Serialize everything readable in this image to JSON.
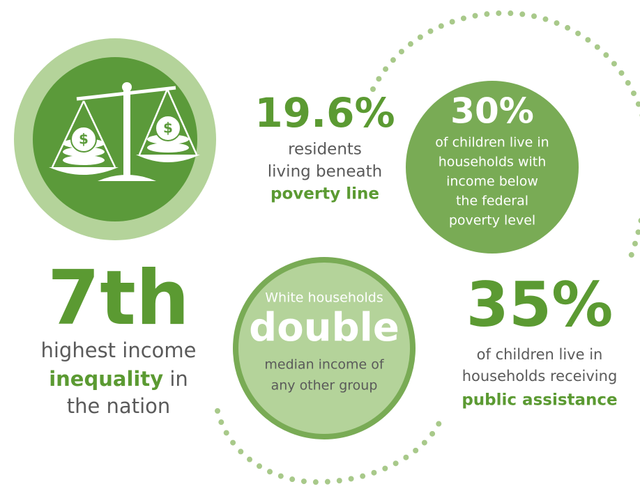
{
  "poverty": {
    "figure": "19.6%",
    "text": [
      "residents",
      "living beneath"
    ],
    "emphasis": "poverty line"
  },
  "child_poverty": {
    "figure": "30%",
    "text": [
      "of children live in",
      "households with",
      "income below",
      "the federal",
      "poverty level"
    ]
  },
  "inequality": {
    "figure": "7th",
    "text": "highest income",
    "emphasis": "inequality",
    "text_after": " in",
    "text_end": "the nation"
  },
  "median_income": {
    "intro": "White households",
    "figure": "double",
    "text": [
      "median income of",
      "any other group"
    ]
  },
  "public_assistance": {
    "figure": "35%",
    "text": [
      "of children live in",
      "households receiving"
    ],
    "emphasis": "public assistance"
  }
}
